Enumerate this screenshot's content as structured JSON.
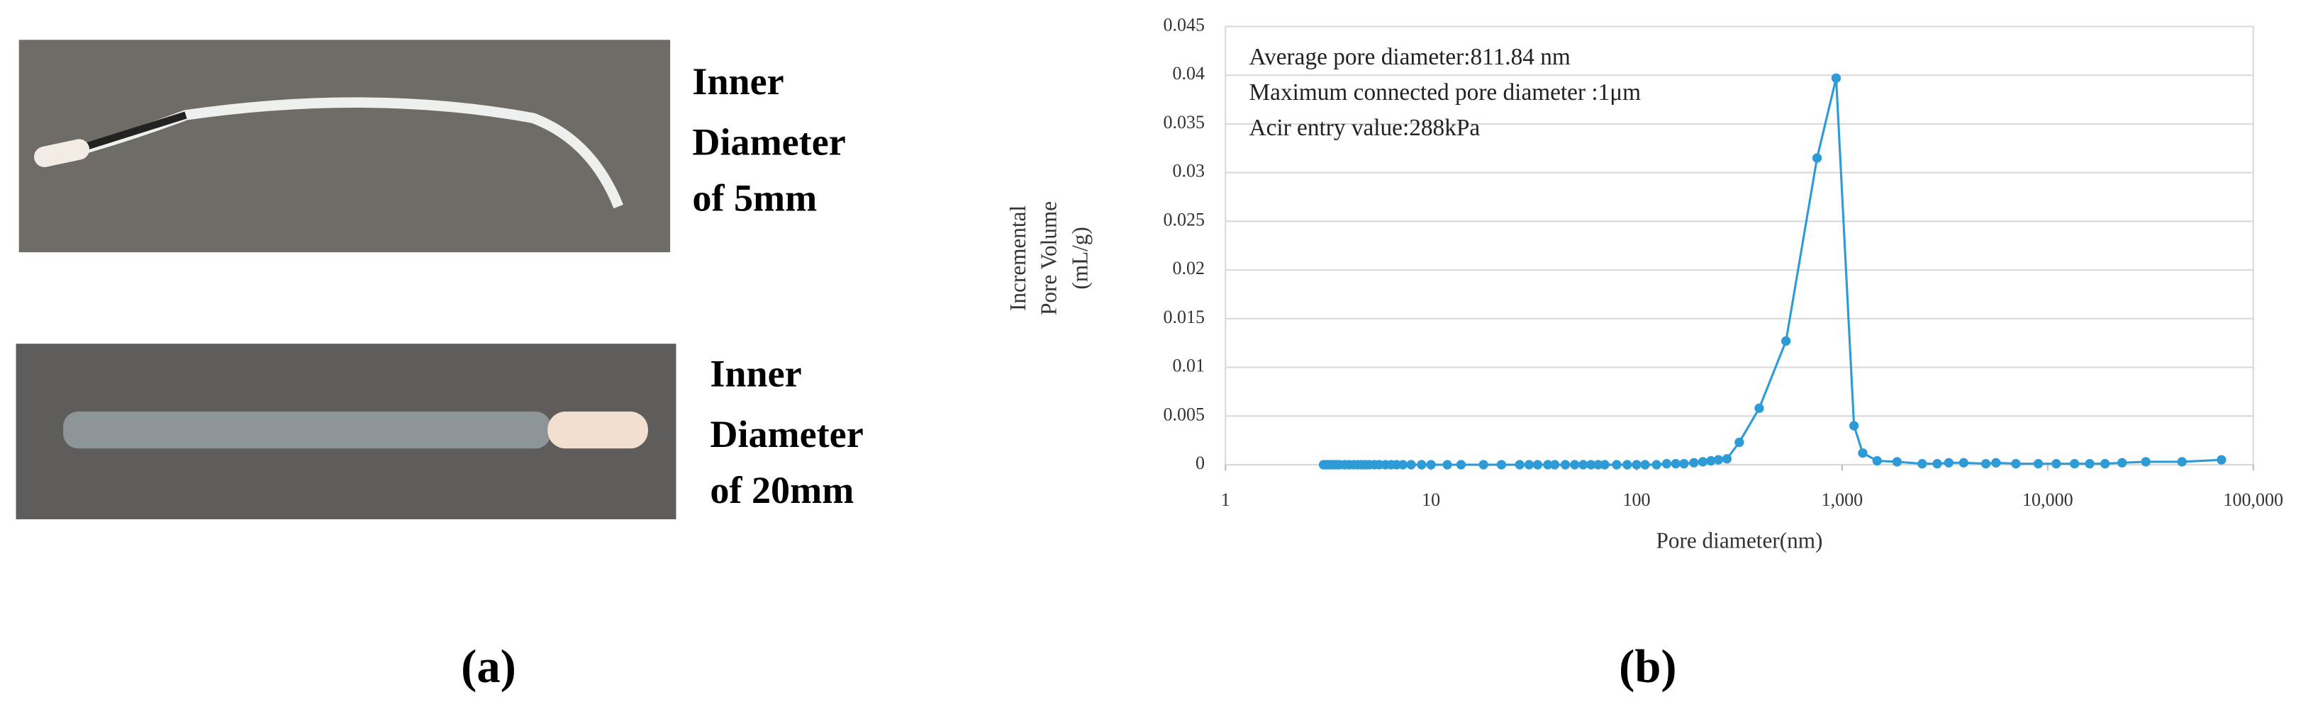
{
  "photos": [
    {
      "label_lines": [
        "Inner",
        "Diameter",
        "of 5mm"
      ]
    },
    {
      "label_lines": [
        "Inner",
        "Diameter",
        "of 20mm"
      ]
    }
  ],
  "panels": [
    "(a)",
    "(b)"
  ],
  "chart_data": {
    "type": "line",
    "ylabel": [
      "Incremental",
      "Pore Volume",
      "(mL/g)"
    ],
    "xlabel": "Pore diameter(nm)",
    "annotations": [
      "Average pore diameter:811.84 nm",
      "Maximum connected pore diameter :1μm",
      "Acir entry value:288kPa"
    ],
    "log_x": true,
    "grid": true,
    "xlim": [
      1,
      100000
    ],
    "xticks": [
      1,
      10,
      100,
      {
        "value": 1000,
        "label": "1,000"
      },
      {
        "value": 10000,
        "label": "10,000"
      },
      {
        "value": 100000,
        "label": "100,000"
      }
    ],
    "ylim": [
      0,
      0.045
    ],
    "yticks": [
      0,
      0.005,
      0.01,
      0.015,
      0.02,
      0.025,
      0.03,
      0.035,
      0.04,
      0.045
    ],
    "x": [
      3.0,
      3.1,
      3.2,
      3.3,
      3.4,
      3.5,
      3.6,
      3.8,
      4.0,
      4.2,
      4.4,
      4.6,
      4.8,
      5.0,
      5.3,
      5.6,
      6.0,
      6.4,
      6.8,
      7.3,
      8,
      9,
      10,
      12,
      14,
      18,
      22,
      27,
      30,
      33,
      37,
      40,
      45,
      50,
      55,
      60,
      65,
      70,
      80,
      90,
      100,
      110,
      125,
      140,
      155,
      170,
      190,
      210,
      230,
      250,
      275,
      316,
      395,
      533,
      755,
      935,
      1142,
      1259,
      1480,
      1850,
      2450,
      2900,
      3300,
      3900,
      5000,
      5600,
      7000,
      9000,
      11000,
      13500,
      16000,
      19000,
      23000,
      30000,
      45000,
      70000
    ],
    "series": [
      {
        "name": "Incremental Pore Volume",
        "color": "#2e9bd6",
        "values": [
          0,
          0,
          0,
          0,
          0,
          0,
          0,
          0,
          0,
          0,
          0,
          0,
          0,
          0,
          0,
          0,
          0,
          0,
          0,
          0,
          0,
          0,
          0,
          0,
          0,
          0,
          0,
          0,
          0,
          0,
          0,
          0,
          0,
          0,
          0,
          0,
          0,
          0,
          0,
          0,
          0,
          0,
          0,
          0.0001,
          0.0001,
          0.0001,
          0.0002,
          0.0003,
          0.0004,
          0.0005,
          0.0006,
          0.0023,
          0.0058,
          0.0127,
          0.0315,
          0.0397,
          0.004,
          0.0012,
          0.0004,
          0.0003,
          0.0001,
          0.0001,
          0.0002,
          0.0002,
          0.0001,
          0.0002,
          0.0001,
          0.0001,
          0.0001,
          0.0001,
          0.0001,
          0.0001,
          0.0002,
          0.0003,
          0.0003,
          0.0005
        ]
      }
    ]
  }
}
